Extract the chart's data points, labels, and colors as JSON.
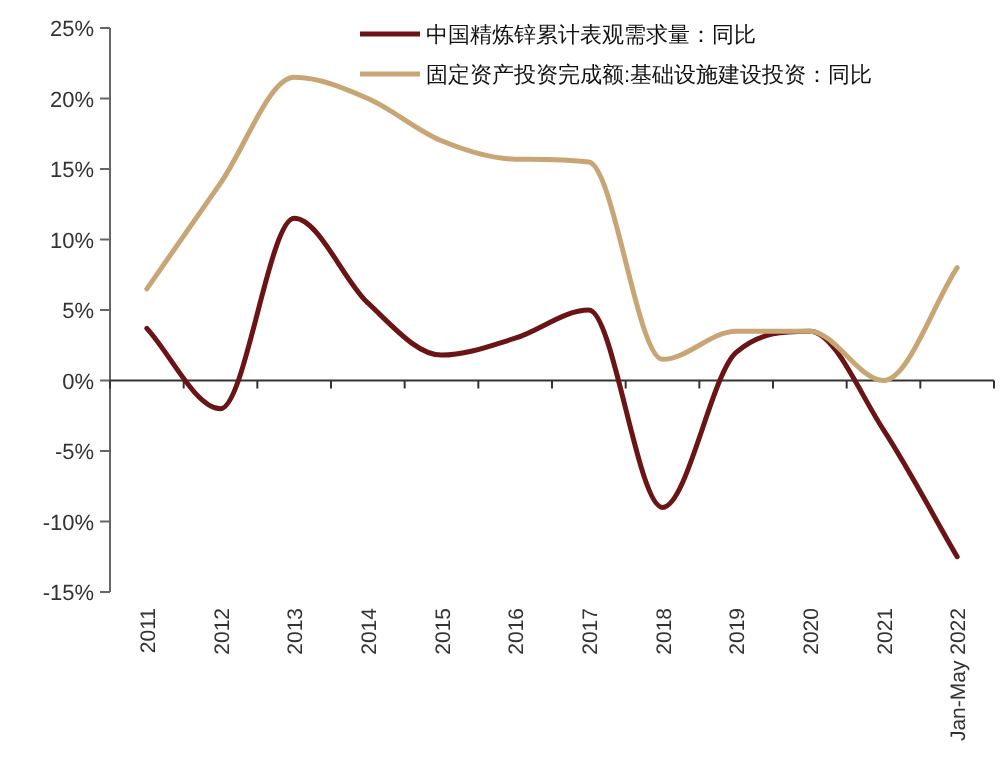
{
  "chart_data": {
    "type": "line",
    "categories": [
      "2011",
      "2012",
      "2013",
      "2014",
      "2015",
      "2016",
      "2017",
      "2018",
      "2019",
      "2020",
      "2021",
      "Jan-May 2022"
    ],
    "series": [
      {
        "name": "中国精炼锌累计表观需求量：同比",
        "color": "#6b1416",
        "values": [
          3.7,
          -2,
          11.5,
          5.5,
          1.8,
          3,
          5,
          -9,
          2,
          3.5,
          -3.5,
          -12.5
        ]
      },
      {
        "name": "固定资产投资完成额:基础设施建设投资：同比",
        "color": "#c8a574",
        "values": [
          6.5,
          14,
          21.5,
          20,
          17,
          15.7,
          15.5,
          1.5,
          3.5,
          3.5,
          0,
          8
        ]
      }
    ],
    "ylim": [
      -15,
      25
    ],
    "yticks": [
      {
        "value": -15,
        "label": "-15%"
      },
      {
        "value": -10,
        "label": "-10%"
      },
      {
        "value": -5,
        "label": "-5%"
      },
      {
        "value": 0,
        "label": "0%"
      },
      {
        "value": 5,
        "label": "5%"
      },
      {
        "value": 10,
        "label": "10%"
      },
      {
        "value": 15,
        "label": "15%"
      },
      {
        "value": 20,
        "label": "20%"
      },
      {
        "value": 25,
        "label": "25%"
      }
    ],
    "legend": "top",
    "marker": "none",
    "line_style": "solid"
  }
}
